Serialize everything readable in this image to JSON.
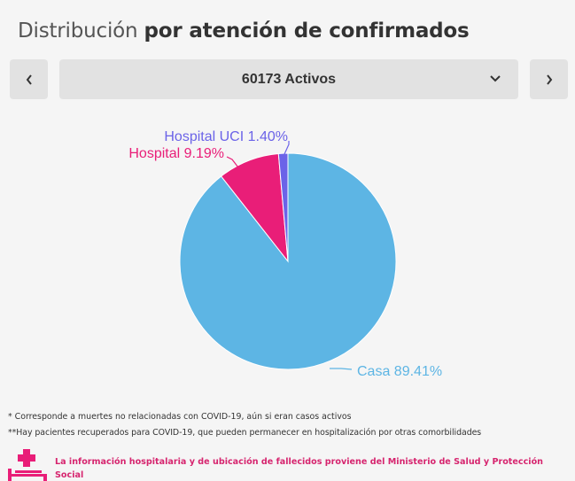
{
  "header": {
    "title_light": "Distribución",
    "title_bold": "por atención de confirmados"
  },
  "selector": {
    "prev_icon": "chevron-left-icon",
    "next_icon": "chevron-right-icon",
    "dropdown_icon": "chevron-down-icon",
    "selected_label": "60173 Activos"
  },
  "chart_data": {
    "type": "pie",
    "title": "",
    "slices": [
      {
        "label": "Casa 89.41%",
        "name": "Casa",
        "value": 89.41,
        "color": "#5db5e4"
      },
      {
        "label": "Hospital 9.19%",
        "name": "Hospital",
        "value": 9.19,
        "color": "#e91e78"
      },
      {
        "label": "Hospital UCI 1.40%",
        "name": "Hospital UCI",
        "value": 1.4,
        "color": "#6b63e8"
      }
    ]
  },
  "notes": {
    "note1": "* Corresponde a muertes no relacionadas con COVID-19, aún si eran casos activos",
    "note2": "**Hay pacientes recuperados para COVID-19, que pueden permanecer en hospitalización por otras comorbilidades"
  },
  "footer": {
    "icon": "hospital-bed-icon",
    "text": "La información hospitalaria y de ubicación de fallecidos proviene del Ministerio de Salud y Protección Social",
    "color": "#d6246e"
  }
}
